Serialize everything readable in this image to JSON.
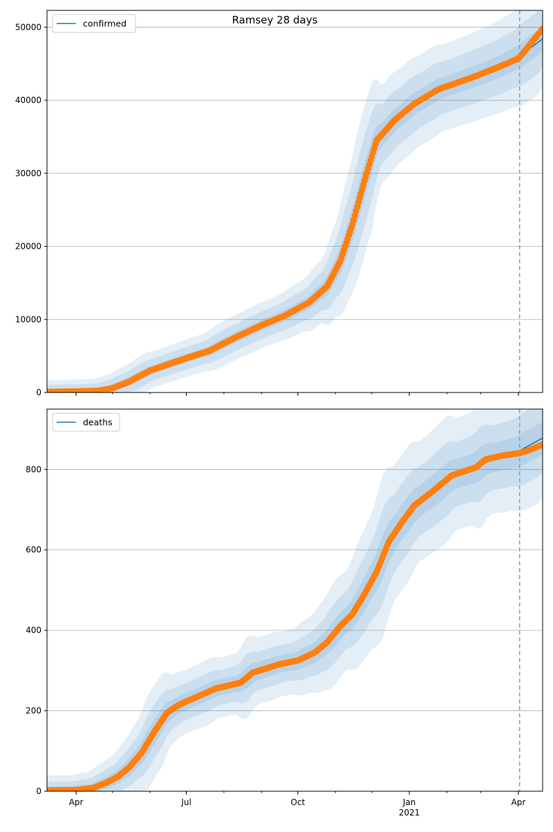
{
  "title": "Ramsey 28 days",
  "x_tick_labels": [
    "Apr",
    "Jul",
    "Oct",
    "Jan",
    "Apr"
  ],
  "x_year_label": "2021",
  "chart_data": [
    {
      "type": "line",
      "x_type": "date",
      "legend": "confirmed",
      "legend_position": "top-left",
      "grid": "horizontal",
      "xlim": [
        "2020-03-08",
        "2021-04-21"
      ],
      "ylim": [
        0,
        52300
      ],
      "yticks": [
        0,
        10000,
        20000,
        30000,
        40000,
        50000
      ],
      "xticks": [
        "2020-04-01",
        "2020-07-01",
        "2020-10-01",
        "2021-01-01",
        "2021-04-01"
      ],
      "forecast_start": "2021-04-02",
      "colors": {
        "model": "#1f77b4",
        "observed": "#ff7f0e",
        "band": "#1f77b4",
        "forecast_line": "#6fa8d0"
      },
      "observed_anchor": [
        [
          "2020-03-08",
          80
        ],
        [
          "2020-04-01",
          150
        ],
        [
          "2020-04-20",
          250
        ],
        [
          "2020-05-01",
          600
        ],
        [
          "2020-05-15",
          1500
        ],
        [
          "2020-06-01",
          3000
        ],
        [
          "2020-06-15",
          3800
        ],
        [
          "2020-07-01",
          4700
        ],
        [
          "2020-07-20",
          5700
        ],
        [
          "2020-08-10",
          7500
        ],
        [
          "2020-09-01",
          9200
        ],
        [
          "2020-09-20",
          10500
        ],
        [
          "2020-10-10",
          12300
        ],
        [
          "2020-10-25",
          14500
        ],
        [
          "2020-11-05",
          18000
        ],
        [
          "2020-11-15",
          23000
        ],
        [
          "2020-11-25",
          29000
        ],
        [
          "2020-12-05",
          34500
        ],
        [
          "2020-12-20",
          37300
        ],
        [
          "2021-01-05",
          39500
        ],
        [
          "2021-01-25",
          41500
        ],
        [
          "2021-02-20",
          43000
        ],
        [
          "2021-03-15",
          44500
        ],
        [
          "2021-04-01",
          45700
        ],
        [
          "2021-04-10",
          47500
        ],
        [
          "2021-04-21",
          49800
        ]
      ],
      "model_anchor": [
        [
          "2020-03-08",
          80
        ],
        [
          "2020-04-01",
          150
        ],
        [
          "2020-04-20",
          250
        ],
        [
          "2020-05-01",
          600
        ],
        [
          "2020-05-15",
          1500
        ],
        [
          "2020-06-01",
          3000
        ],
        [
          "2020-06-15",
          3800
        ],
        [
          "2020-07-01",
          4700
        ],
        [
          "2020-07-20",
          5700
        ],
        [
          "2020-08-10",
          7500
        ],
        [
          "2020-09-01",
          9200
        ],
        [
          "2020-09-20",
          10500
        ],
        [
          "2020-10-10",
          12300
        ],
        [
          "2020-10-25",
          14500
        ],
        [
          "2020-11-05",
          18000
        ],
        [
          "2020-11-15",
          23000
        ],
        [
          "2020-11-25",
          29000
        ],
        [
          "2020-12-05",
          34500
        ],
        [
          "2020-12-20",
          37300
        ],
        [
          "2021-01-05",
          39500
        ],
        [
          "2021-01-25",
          41500
        ],
        [
          "2021-02-20",
          43000
        ],
        [
          "2021-03-15",
          44500
        ],
        [
          "2021-04-01",
          45900
        ],
        [
          "2021-04-21",
          48400
        ]
      ],
      "band_half_width": [
        1.8,
        4.5,
        7.5
      ]
    },
    {
      "type": "line",
      "x_type": "date",
      "legend": "deaths",
      "legend_position": "top-left",
      "grid": "horizontal",
      "xlim": [
        "2020-03-08",
        "2021-04-21"
      ],
      "ylim": [
        0,
        950
      ],
      "yticks": [
        0,
        200,
        400,
        600,
        800
      ],
      "xticks": [
        "2020-04-01",
        "2020-07-01",
        "2020-10-01",
        "2021-01-01",
        "2021-04-01"
      ],
      "forecast_start": "2021-04-02",
      "colors": {
        "model": "#1f77b4",
        "observed": "#ff7f0e",
        "band": "#1f77b4",
        "forecast_line": "#6fa8d0"
      },
      "observed_anchor": [
        [
          "2020-03-08",
          2
        ],
        [
          "2020-04-01",
          3
        ],
        [
          "2020-04-15",
          8
        ],
        [
          "2020-04-25",
          20
        ],
        [
          "2020-05-05",
          35
        ],
        [
          "2020-05-15",
          60
        ],
        [
          "2020-05-25",
          95
        ],
        [
          "2020-06-05",
          150
        ],
        [
          "2020-06-15",
          195
        ],
        [
          "2020-06-25",
          215
        ],
        [
          "2020-07-10",
          235
        ],
        [
          "2020-07-25",
          255
        ],
        [
          "2020-08-15",
          270
        ],
        [
          "2020-08-25",
          295
        ],
        [
          "2020-09-15",
          315
        ],
        [
          "2020-10-01",
          325
        ],
        [
          "2020-10-15",
          345
        ],
        [
          "2020-10-25",
          370
        ],
        [
          "2020-11-05",
          410
        ],
        [
          "2020-11-15",
          440
        ],
        [
          "2020-11-25",
          490
        ],
        [
          "2020-12-05",
          545
        ],
        [
          "2020-12-15",
          620
        ],
        [
          "2020-12-25",
          665
        ],
        [
          "2021-01-05",
          710
        ],
        [
          "2021-01-20",
          745
        ],
        [
          "2021-02-05",
          785
        ],
        [
          "2021-02-25",
          805
        ],
        [
          "2021-03-05",
          825
        ],
        [
          "2021-03-20",
          835
        ],
        [
          "2021-04-01",
          840
        ],
        [
          "2021-04-10",
          848
        ],
        [
          "2021-04-21",
          862
        ]
      ],
      "model_anchor": [
        [
          "2020-03-08",
          2
        ],
        [
          "2020-04-01",
          3
        ],
        [
          "2020-04-15",
          8
        ],
        [
          "2020-04-25",
          20
        ],
        [
          "2020-05-05",
          35
        ],
        [
          "2020-05-15",
          60
        ],
        [
          "2020-05-25",
          95
        ],
        [
          "2020-06-05",
          150
        ],
        [
          "2020-06-15",
          195
        ],
        [
          "2020-06-25",
          215
        ],
        [
          "2020-07-10",
          235
        ],
        [
          "2020-07-25",
          255
        ],
        [
          "2020-08-15",
          270
        ],
        [
          "2020-08-25",
          295
        ],
        [
          "2020-09-15",
          315
        ],
        [
          "2020-10-01",
          325
        ],
        [
          "2020-10-15",
          345
        ],
        [
          "2020-10-25",
          370
        ],
        [
          "2020-11-05",
          410
        ],
        [
          "2020-11-15",
          440
        ],
        [
          "2020-11-25",
          490
        ],
        [
          "2020-12-05",
          545
        ],
        [
          "2020-12-15",
          620
        ],
        [
          "2020-12-25",
          665
        ],
        [
          "2021-01-05",
          710
        ],
        [
          "2021-01-20",
          745
        ],
        [
          "2021-02-05",
          785
        ],
        [
          "2021-02-25",
          805
        ],
        [
          "2021-03-05",
          825
        ],
        [
          "2021-03-20",
          835
        ],
        [
          "2021-04-01",
          845
        ],
        [
          "2021-04-21",
          878
        ]
      ],
      "band_half_width": [
        2.5,
        5.5,
        9.5
      ]
    }
  ]
}
